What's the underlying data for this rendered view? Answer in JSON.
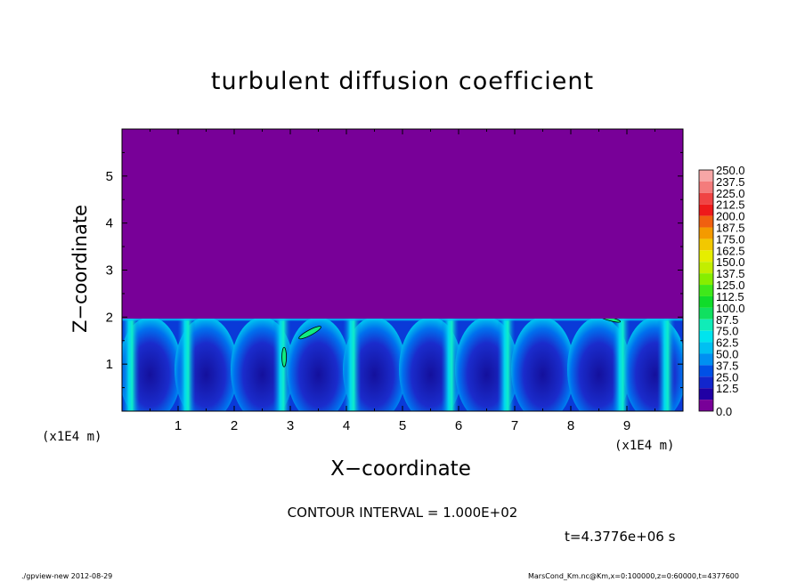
{
  "chart_data": {
    "type": "heatmap",
    "title": "turbulent diffusion coefficient",
    "xlabel": "X−coordinate",
    "ylabel": "Z−coordinate",
    "x_unit": "(x1E4 m)",
    "xlim": [
      0,
      10
    ],
    "ylim": [
      0,
      6
    ],
    "x_ticks": [
      "1",
      "2",
      "3",
      "4",
      "5",
      "6",
      "7",
      "8",
      "9"
    ],
    "y_ticks": [
      "1",
      "2",
      "3",
      "4",
      "5"
    ],
    "boundary_layer_top": 2.0,
    "above_layer_value": 0.0,
    "colorbar": {
      "levels": [
        "250.0",
        "237.5",
        "225.0",
        "212.5",
        "200.0",
        "187.5",
        "175.0",
        "162.5",
        "150.0",
        "137.5",
        "125.0",
        "112.5",
        "100.0",
        "87.5",
        "75.0",
        "62.5",
        "50.0",
        "37.5",
        "25.0",
        "12.5",
        "0.0"
      ],
      "colors": [
        "#f7a6a6",
        "#f47c7c",
        "#f04444",
        "#ee1a1a",
        "#f06010",
        "#f49a00",
        "#f2c800",
        "#e6ee00",
        "#c2ee00",
        "#86ee00",
        "#3fe81a",
        "#10dc2a",
        "#10e060",
        "#10ecb8",
        "#00e4ee",
        "#00c0f2",
        "#0090f2",
        "#0050e6",
        "#1226cc",
        "#2000a4",
        "#780098"
      ]
    },
    "contour_interval": "CONTOUR INTERVAL = 1.000E+02",
    "time_label": "t=4.3776e+06 s"
  },
  "footer": {
    "left": "./gpview-new   2012-08-29",
    "right": "MarsCond_Km.nc@Km,x=0:100000,z=0:60000,t=4377600"
  }
}
